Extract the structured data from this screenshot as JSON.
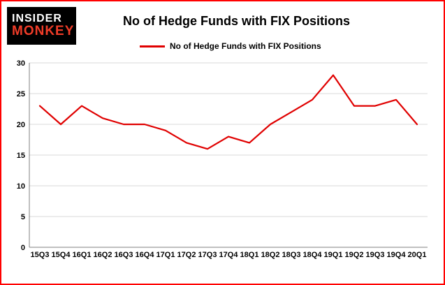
{
  "branding": {
    "logo_line1": "INSIDER",
    "logo_line2": "MONKEY"
  },
  "header": {
    "title": "No of Hedge Funds with FIX Positions"
  },
  "legend": {
    "label": "No of Hedge Funds with FIX Positions"
  },
  "chart_data": {
    "type": "line",
    "title": "No of Hedge Funds with FIX Positions",
    "categories": [
      "15Q3",
      "15Q4",
      "16Q1",
      "16Q2",
      "16Q3",
      "16Q4",
      "17Q1",
      "17Q2",
      "17Q3",
      "17Q4",
      "18Q1",
      "18Q2",
      "18Q3",
      "18Q4",
      "19Q1",
      "19Q2",
      "19Q3",
      "19Q4",
      "20Q1"
    ],
    "series": [
      {
        "name": "No of Hedge Funds with FIX Positions",
        "color": "#e00000",
        "values": [
          23,
          20,
          23,
          21,
          20,
          20,
          19,
          17,
          16,
          18,
          17,
          20,
          22,
          24,
          28,
          23,
          23,
          24,
          20
        ]
      }
    ],
    "xlabel": "",
    "ylabel": "",
    "ylim": [
      0,
      30
    ],
    "yticks": [
      0,
      5,
      10,
      15,
      20,
      25,
      30
    ],
    "grid": true,
    "legend_position": "top"
  },
  "colors": {
    "frame_border": "#ff0000",
    "series_line": "#e00000",
    "grid": "#d9d9d9",
    "axis": "#808080",
    "logo_background": "#000000",
    "logo_insider": "#ffffff",
    "logo_monkey": "#f03c28"
  }
}
